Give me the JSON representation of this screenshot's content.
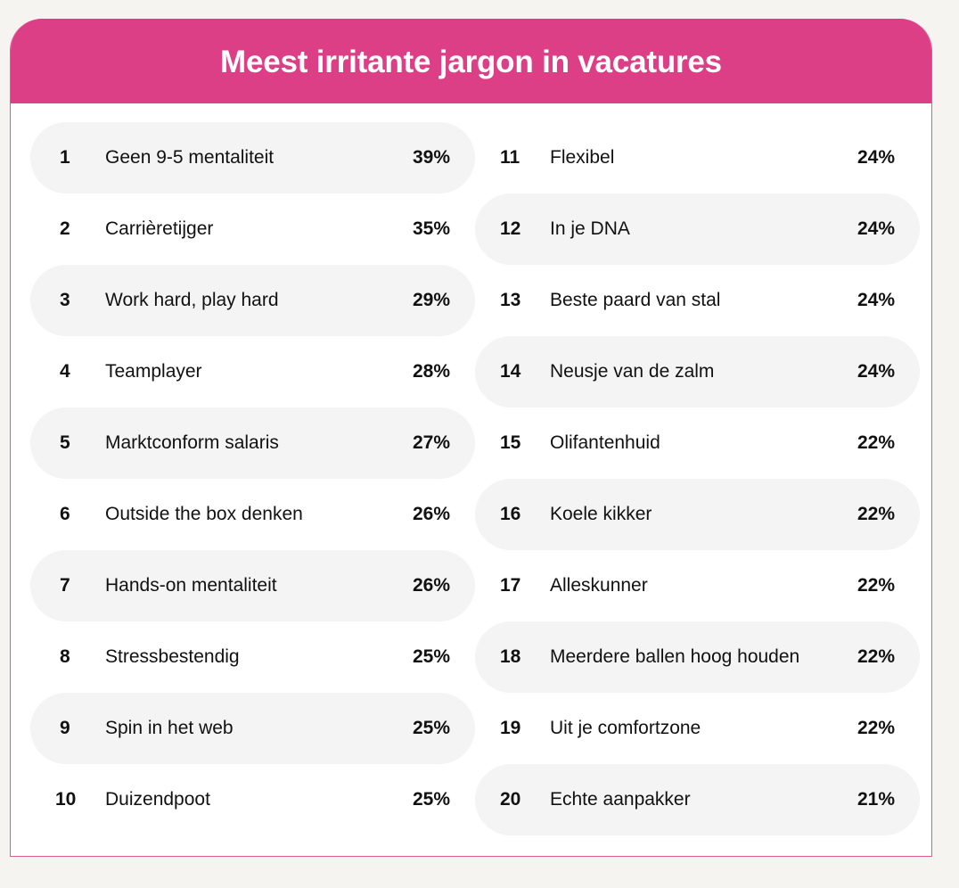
{
  "chart_data": {
    "type": "table",
    "title": "Meest irritante jargon in vacatures",
    "rows": [
      {
        "rank": "1",
        "label": "Geen 9-5 mentaliteit",
        "value": "39%"
      },
      {
        "rank": "2",
        "label": "Carrièretijger",
        "value": "35%"
      },
      {
        "rank": "3",
        "label": "Work hard, play hard",
        "value": "29%"
      },
      {
        "rank": "4",
        "label": "Teamplayer",
        "value": "28%"
      },
      {
        "rank": "5",
        "label": "Marktconform salaris",
        "value": "27%"
      },
      {
        "rank": "6",
        "label": "Outside the box denken",
        "value": "26%"
      },
      {
        "rank": "7",
        "label": "Hands-on mentaliteit",
        "value": "26%"
      },
      {
        "rank": "8",
        "label": "Stressbestendig",
        "value": "25%"
      },
      {
        "rank": "9",
        "label": "Spin in het web",
        "value": "25%"
      },
      {
        "rank": "10",
        "label": "Duizendpoot",
        "value": "25%"
      },
      {
        "rank": "11",
        "label": "Flexibel",
        "value": "24%"
      },
      {
        "rank": "12",
        "label": "In je DNA",
        "value": "24%"
      },
      {
        "rank": "13",
        "label": "Beste paard van stal",
        "value": "24%"
      },
      {
        "rank": "14",
        "label": "Neusje van de zalm",
        "value": "24%"
      },
      {
        "rank": "15",
        "label": "Olifantenhuid",
        "value": "22%"
      },
      {
        "rank": "16",
        "label": "Koele kikker",
        "value": "22%"
      },
      {
        "rank": "17",
        "label": "Alleskunner",
        "value": "22%"
      },
      {
        "rank": "18",
        "label": "Meerdere ballen hoog houden",
        "value": "22%"
      },
      {
        "rank": "19",
        "label": "Uit je comfortzone",
        "value": "22%"
      },
      {
        "rank": "20",
        "label": "Echte aanpakker",
        "value": "21%"
      }
    ]
  },
  "colors": {
    "header_bg": "#dc3f86",
    "row_shade": "#f4f4f4",
    "page_bg": "#f6f4f1"
  }
}
